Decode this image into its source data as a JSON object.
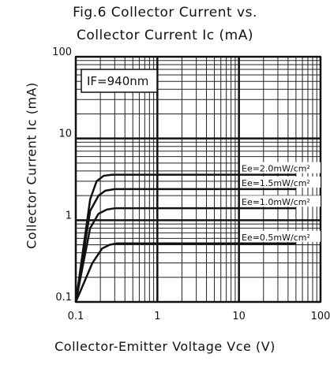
{
  "chart_data": {
    "type": "line",
    "title": "Fig.6 Collector Current vs.",
    "subtitle": "Collector Current Ic (mA)",
    "xlabel": "Collector-Emitter Voltage Vce (V)",
    "ylabel": "Collector Current Ic (mA)",
    "xscale": "log",
    "yscale": "log",
    "xlim": [
      0.1,
      100
    ],
    "ylim": [
      0.1,
      100
    ],
    "x_ticks": [
      0.1,
      1,
      10,
      100
    ],
    "x_tick_labels": [
      "0.1",
      "1",
      "10",
      "100"
    ],
    "y_ticks": [
      0.1,
      1,
      10,
      100
    ],
    "y_tick_labels": [
      "0.1",
      "1",
      "10",
      "100"
    ],
    "grid": true,
    "annotation": "IF=940nm",
    "series": [
      {
        "name": "Ee=2.0mW/cm²",
        "x": [
          0.1,
          0.15,
          0.18,
          0.22,
          0.28,
          50
        ],
        "y": [
          0.1,
          1.8,
          3.0,
          3.5,
          3.6,
          3.6
        ]
      },
      {
        "name": "Ee=1.5mW/cm²",
        "x": [
          0.1,
          0.15,
          0.19,
          0.23,
          0.3,
          50
        ],
        "y": [
          0.1,
          1.3,
          2.0,
          2.3,
          2.4,
          2.4
        ]
      },
      {
        "name": "Ee=1.0mW/cm²",
        "x": [
          0.1,
          0.15,
          0.19,
          0.24,
          0.3,
          50
        ],
        "y": [
          0.1,
          0.8,
          1.2,
          1.35,
          1.4,
          1.4
        ]
      },
      {
        "name": "Ee=0.5mW/cm²",
        "x": [
          0.1,
          0.16,
          0.21,
          0.26,
          0.32,
          50
        ],
        "y": [
          0.1,
          0.3,
          0.45,
          0.5,
          0.52,
          0.52
        ]
      }
    ]
  }
}
